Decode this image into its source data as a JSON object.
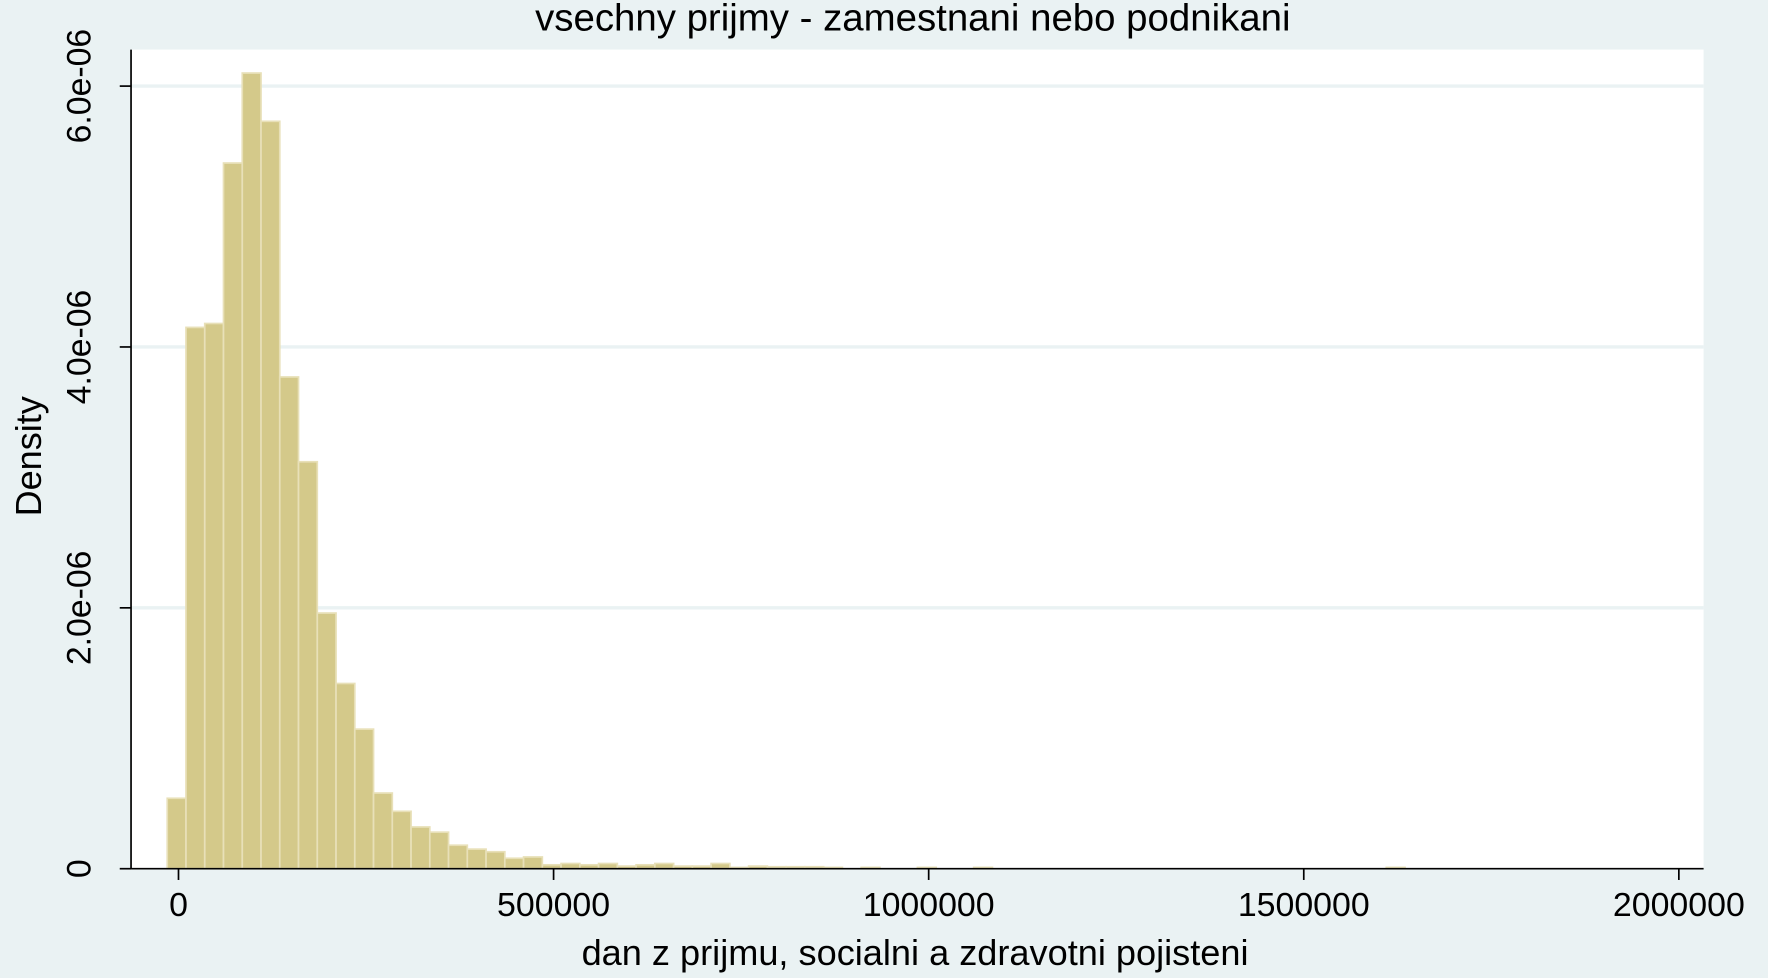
{
  "chart_data": {
    "type": "histogram",
    "title": "vsechny prijmy - zamestnani nebo podnikani",
    "xlabel": "dan z prijmu, socialni a zdravotni pojisteni",
    "ylabel": "Density",
    "color": "#d4c98a",
    "bins": [
      -15000,
      10000,
      35000,
      60000,
      85000,
      110000,
      135000,
      160000,
      185000,
      210000,
      235000,
      260000,
      285000,
      310000,
      335000,
      360000,
      385000,
      410000,
      435000,
      460000,
      485000,
      510000,
      535000,
      560000,
      585000,
      610000,
      635000,
      660000,
      685000,
      710000,
      735000,
      760000,
      785000,
      810000,
      835000,
      860000,
      885000,
      910000,
      935000,
      960000,
      985000,
      1010000,
      1035000,
      1060000,
      1085000,
      1110000,
      1135000,
      1160000,
      1185000,
      1210000,
      1235000,
      1260000,
      1285000,
      1310000,
      1335000,
      1360000,
      1385000,
      1410000,
      1435000,
      1460000,
      1485000,
      1510000,
      1535000,
      1560000,
      1585000,
      1610000,
      1635000
    ],
    "values": [
      5.4e-07,
      4.15e-06,
      4.18e-06,
      5.41e-06,
      6.1e-06,
      5.73e-06,
      3.77e-06,
      3.12e-06,
      1.96e-06,
      1.42e-06,
      1.07e-06,
      5.8e-07,
      4.4e-07,
      3.2e-07,
      2.8e-07,
      1.8e-07,
      1.5e-07,
      1.3e-07,
      8e-08,
      9e-08,
      3e-08,
      4e-08,
      3e-08,
      4e-08,
      2e-08,
      3e-08,
      4e-08,
      2e-08,
      2e-08,
      4e-08,
      1e-08,
      2e-08,
      1.5e-08,
      1.5e-08,
      1.5e-08,
      1e-08,
      0,
      1e-08,
      0,
      0,
      1e-08,
      0,
      0,
      1e-08,
      0,
      0,
      0,
      0,
      0,
      0,
      0,
      0,
      0,
      0,
      0,
      0,
      0,
      0,
      0,
      0,
      0,
      0,
      0,
      0,
      0,
      1e-08
    ],
    "xlim": [
      -63250,
      2033000
    ],
    "xticks": [
      0,
      500000,
      1000000,
      1500000,
      2000000
    ],
    "ylim": [
      0,
      6.28e-06
    ],
    "yticks": [
      0,
      {
        "value": 2e-06,
        "label": "2.0e-06"
      },
      {
        "value": 4e-06,
        "label": "4.0e-06"
      },
      {
        "value": 6e-06,
        "label": "6.0e-06"
      }
    ],
    "grid": true
  }
}
